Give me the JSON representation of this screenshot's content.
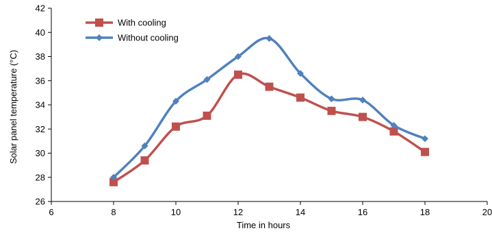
{
  "chart_data": {
    "type": "line",
    "title": "",
    "xlabel": "Time in hours",
    "ylabel": "Solar panel temperature (°C)",
    "xlim": [
      6,
      20
    ],
    "ylim": [
      26,
      42
    ],
    "x_ticks": [
      "6",
      "8",
      "10",
      "12",
      "14",
      "16",
      "18",
      "20"
    ],
    "y_ticks": [
      "26",
      "28",
      "30",
      "32",
      "34",
      "36",
      "38",
      "40",
      "42"
    ],
    "grid": false,
    "legend_position": "top-left",
    "x": [
      8,
      9,
      10,
      11,
      12,
      13,
      14,
      15,
      16,
      17,
      18
    ],
    "series": [
      {
        "name": "With cooling",
        "color": "#C0504D",
        "marker": "square",
        "values": [
          27.6,
          29.4,
          32.2,
          33.1,
          36.5,
          35.5,
          34.6,
          33.5,
          33.0,
          31.8,
          30.1
        ]
      },
      {
        "name": "Without cooling",
        "color": "#4F81BD",
        "marker": "diamond",
        "values": [
          28.0,
          30.6,
          34.3,
          36.1,
          38.0,
          39.5,
          36.6,
          34.5,
          34.4,
          32.3,
          31.2
        ]
      }
    ]
  }
}
